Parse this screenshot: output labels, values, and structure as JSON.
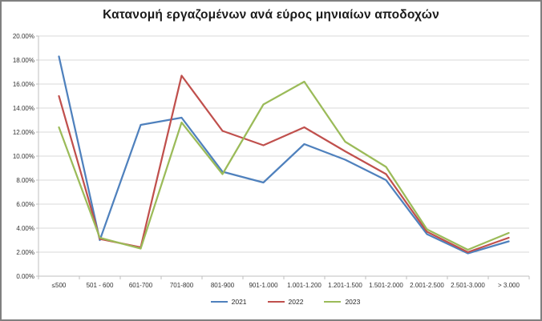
{
  "window": {
    "background": "#FFFFFF",
    "border_color": "#808080"
  },
  "chart_data": {
    "type": "line",
    "title": "Κατανομή εργαζομένων ανά εύρος μηνιαίων αποδοχών",
    "categories": [
      "≤500",
      "501 - 600",
      "601-700",
      "701-800",
      "801-900",
      "901-1.000",
      "1.001-1.200",
      "1.201-1.500",
      "1.501-2.000",
      "2.001-2.500",
      "2.501-3.000",
      "> 3.000"
    ],
    "series": [
      {
        "name": "2021",
        "color": "#4F81BD",
        "values": [
          18.3,
          3.0,
          12.6,
          13.2,
          8.7,
          7.8,
          11.0,
          9.7,
          8.0,
          3.5,
          1.9,
          2.9
        ]
      },
      {
        "name": "2022",
        "color": "#C0504D",
        "values": [
          15.0,
          3.1,
          2.4,
          16.7,
          12.1,
          10.9,
          12.4,
          10.4,
          8.5,
          3.7,
          2.0,
          3.2
        ]
      },
      {
        "name": "2023",
        "color": "#9BBB59",
        "values": [
          12.4,
          3.2,
          2.3,
          12.8,
          8.5,
          14.3,
          16.2,
          11.2,
          9.1,
          3.9,
          2.2,
          3.6
        ]
      }
    ],
    "y_axis": {
      "min": 0,
      "max": 20,
      "step": 2,
      "labels": [
        "0.00%",
        "2.00%",
        "4.00%",
        "6.00%",
        "8.00%",
        "10.00%",
        "12.00%",
        "14.00%",
        "16.00%",
        "18.00%",
        "20.00%"
      ]
    },
    "xlabel": "",
    "ylabel": "",
    "grid": true,
    "legend_position": "bottom",
    "styles": {
      "gridline_color": "#D9D9D9",
      "axis_color": "#BFBFBF",
      "tick_label_color": "#333333",
      "line_width": 2.25
    }
  }
}
